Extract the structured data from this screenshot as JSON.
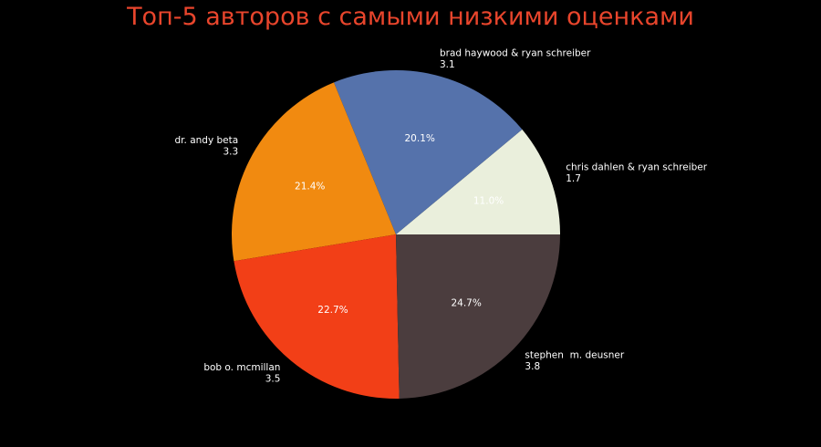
{
  "chart_data": {
    "type": "pie",
    "title": "Топ-5 авторов с самыми низкими оценками",
    "title_color": "#e8452c",
    "background": "#000000",
    "label_color": "#ffffff",
    "start_angle_deg": 0,
    "direction": "counterclockwise",
    "slices": [
      {
        "author": "chris dahlen & ryan schreiber",
        "value": 1.7,
        "pct": "11.0%",
        "color": "#eaefdc"
      },
      {
        "author": "brad haywood & ryan schreiber",
        "value": 3.1,
        "pct": "20.1%",
        "color": "#5572ab"
      },
      {
        "author": "dr. andy beta",
        "value": 3.3,
        "pct": "21.4%",
        "color": "#f18a10"
      },
      {
        "author": "bob o. mcmillan",
        "value": 3.5,
        "pct": "22.7%",
        "color": "#f23f17"
      },
      {
        "author": "stephen  m. deusner",
        "value": 3.8,
        "pct": "24.7%",
        "color": "#4b3d3e"
      }
    ]
  }
}
